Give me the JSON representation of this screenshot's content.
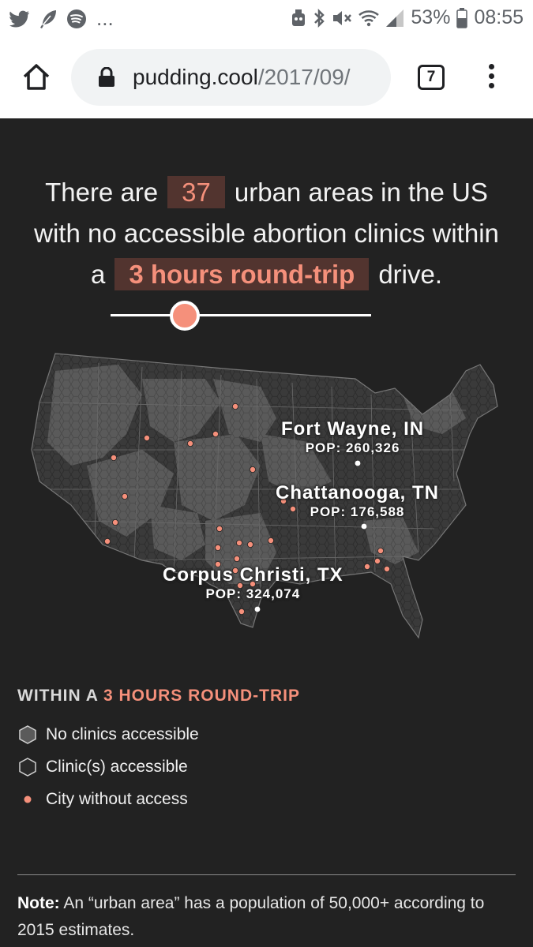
{
  "status_bar": {
    "left_icons": [
      "twitter-icon",
      "feather-icon",
      "spotify-icon"
    ],
    "overflow": "...",
    "battery": "53%",
    "time": "08:55"
  },
  "browser": {
    "url_domain": "pudding.cool",
    "url_path": "/2017/09/",
    "tab_count": "7"
  },
  "headline": {
    "part1": "There are",
    "count": "37",
    "part2": "urban areas in the US with no accessible abortion clinics within",
    "part3": "a",
    "distance": "3 hours round-trip",
    "part4": "drive."
  },
  "slider": {
    "value_fraction": 0.28
  },
  "map": {
    "labels": [
      {
        "name": "Fort Wayne, IN",
        "pop": "POP: 260,326"
      },
      {
        "name": "Chattanooga, TN",
        "pop": "POP: 176,588"
      },
      {
        "name": "Corpus Christi, TX",
        "pop": "POP: 324,074"
      }
    ],
    "colors": {
      "no_access": "#555555",
      "access": "#3a3a3a",
      "city": "#f5907b"
    }
  },
  "legend": {
    "title_prefix": "WITHIN A",
    "title_accent": "3 HOURS ROUND-TRIP",
    "items": [
      "No clinics accessible",
      "Clinic(s) accessible",
      "City without access"
    ]
  },
  "note": {
    "label": "Note:",
    "text": "An “urban area” has a population of 50,000+ according to 2015 estimates."
  },
  "colors": {
    "accent": "#f5907b",
    "background": "#222222",
    "highlight_bg": "#52342f"
  }
}
